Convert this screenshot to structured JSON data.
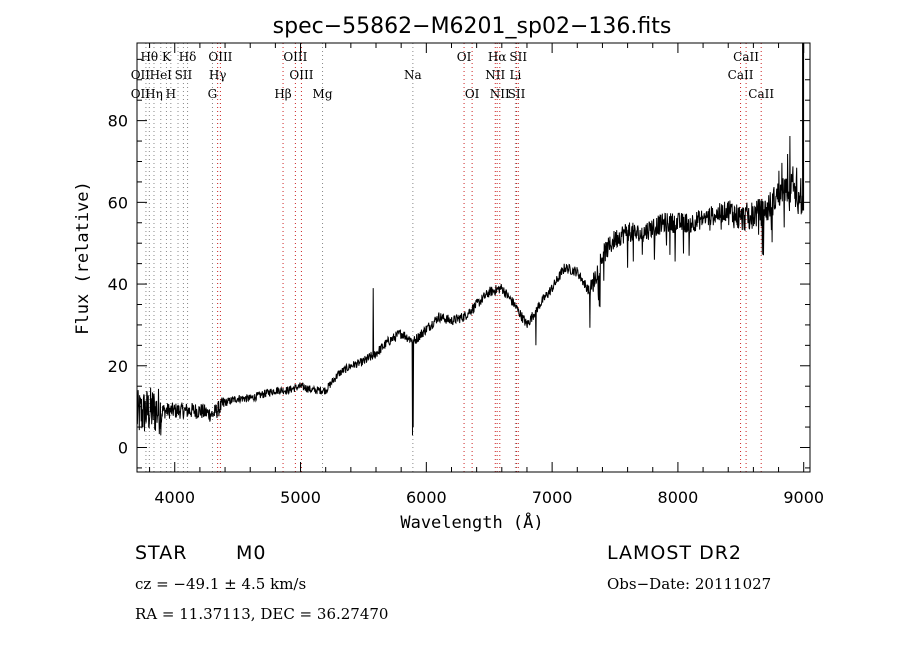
{
  "chart_data": {
    "type": "line",
    "title": "spec−55862−M6201_sp02−136.fits",
    "xlabel": "Wavelength (Å)",
    "ylabel": "Flux (relative)",
    "xlim": [
      3700,
      9050
    ],
    "ylim": [
      -6,
      99
    ],
    "xticks": [
      {
        "value": 4000,
        "label": "4000"
      },
      {
        "value": 5000,
        "label": "5000"
      },
      {
        "value": 6000,
        "label": "6000"
      },
      {
        "value": 7000,
        "label": "7000"
      },
      {
        "value": 8000,
        "label": "8000"
      },
      {
        "value": 9000,
        "label": "9000"
      }
    ],
    "yticks": [
      {
        "value": 0,
        "label": "0"
      },
      {
        "value": 20,
        "label": "20"
      },
      {
        "value": 40,
        "label": "40"
      },
      {
        "value": 60,
        "label": "60"
      },
      {
        "value": 80,
        "label": "80"
      }
    ],
    "continuum": [
      [
        3700,
        8
      ],
      [
        3800,
        9
      ],
      [
        3900,
        9
      ],
      [
        4000,
        9
      ],
      [
        4100,
        9
      ],
      [
        4200,
        9
      ],
      [
        4300,
        8
      ],
      [
        4400,
        11
      ],
      [
        4500,
        12
      ],
      [
        4600,
        12
      ],
      [
        4700,
        13
      ],
      [
        4800,
        14
      ],
      [
        4900,
        14
      ],
      [
        5000,
        15
      ],
      [
        5100,
        14
      ],
      [
        5200,
        14
      ],
      [
        5300,
        18
      ],
      [
        5400,
        20
      ],
      [
        5500,
        21
      ],
      [
        5600,
        23
      ],
      [
        5700,
        26
      ],
      [
        5800,
        28
      ],
      [
        5900,
        26
      ],
      [
        6000,
        29
      ],
      [
        6100,
        32
      ],
      [
        6200,
        31
      ],
      [
        6300,
        32
      ],
      [
        6400,
        35
      ],
      [
        6500,
        38
      ],
      [
        6600,
        39
      ],
      [
        6700,
        35
      ],
      [
        6800,
        30
      ],
      [
        6900,
        35
      ],
      [
        7000,
        39
      ],
      [
        7100,
        44
      ],
      [
        7200,
        43
      ],
      [
        7300,
        38
      ],
      [
        7400,
        47
      ],
      [
        7500,
        51
      ],
      [
        7600,
        53
      ],
      [
        7700,
        52
      ],
      [
        7800,
        54
      ],
      [
        7900,
        55
      ],
      [
        8000,
        55
      ],
      [
        8100,
        55
      ],
      [
        8200,
        56
      ],
      [
        8300,
        57
      ],
      [
        8400,
        58
      ],
      [
        8500,
        56
      ],
      [
        8600,
        57
      ],
      [
        8700,
        58
      ],
      [
        8800,
        62
      ],
      [
        8900,
        64
      ],
      [
        8950,
        60
      ],
      [
        9000,
        58
      ]
    ],
    "features": [
      [
        5577,
        39
      ],
      [
        5890,
        3
      ],
      [
        5895,
        5
      ],
      [
        6870,
        25
      ],
      [
        7600,
        44
      ]
    ],
    "line_marks": [
      {
        "wl": 3771,
        "label": "",
        "color": "#888888"
      },
      {
        "wl": 3798,
        "label": "",
        "color": "#888888"
      },
      {
        "wl": 3835,
        "label": "",
        "color": "#888888"
      },
      {
        "wl": 3889,
        "label": "",
        "color": "#888888"
      },
      {
        "wl": 3934,
        "label": "",
        "color": "#888888"
      },
      {
        "wl": 3969,
        "label": "",
        "color": "#888888"
      },
      {
        "wl": 4026,
        "label": "",
        "color": "#888888"
      },
      {
        "wl": 4069,
        "label": "",
        "color": "#888888"
      },
      {
        "wl": 4102,
        "label": "",
        "color": "#888888"
      },
      {
        "wl": 4300,
        "label": "",
        "color": "#888888"
      },
      {
        "wl": 4341,
        "label": "",
        "color": "#cc2222"
      },
      {
        "wl": 4363,
        "label": "",
        "color": "#cc2222"
      },
      {
        "wl": 4861,
        "label": "",
        "color": "#cc2222"
      },
      {
        "wl": 4959,
        "label": "",
        "color": "#cc2222"
      },
      {
        "wl": 5007,
        "label": "",
        "color": "#cc2222"
      },
      {
        "wl": 5175,
        "label": "",
        "color": "#888888"
      },
      {
        "wl": 5893,
        "label": "",
        "color": "#888888"
      },
      {
        "wl": 6300,
        "label": "",
        "color": "#cc2222"
      },
      {
        "wl": 6364,
        "label": "",
        "color": "#cc2222"
      },
      {
        "wl": 6548,
        "label": "",
        "color": "#cc2222"
      },
      {
        "wl": 6563,
        "label": "",
        "color": "#cc2222"
      },
      {
        "wl": 6584,
        "label": "",
        "color": "#cc2222"
      },
      {
        "wl": 6708,
        "label": "",
        "color": "#888888"
      },
      {
        "wl": 6717,
        "label": "",
        "color": "#cc2222"
      },
      {
        "wl": 6731,
        "label": "",
        "color": "#cc2222"
      },
      {
        "wl": 8498,
        "label": "",
        "color": "#cc2222"
      },
      {
        "wl": 8542,
        "label": "",
        "color": "#cc2222"
      },
      {
        "wl": 8662,
        "label": "",
        "color": "#cc2222"
      }
    ],
    "line_labels": [
      {
        "text": "Hθ",
        "wl": 3798,
        "row": 0
      },
      {
        "text": "K",
        "wl": 3934,
        "row": 0
      },
      {
        "text": "Hδ",
        "wl": 4102,
        "row": 0
      },
      {
        "text": "OIII",
        "wl": 4363,
        "row": 0
      },
      {
        "text": "OIII",
        "wl": 4959,
        "row": 0
      },
      {
        "text": "OI",
        "wl": 6300,
        "row": 0
      },
      {
        "text": "Hα",
        "wl": 6563,
        "row": 0
      },
      {
        "text": "SII",
        "wl": 6731,
        "row": 0
      },
      {
        "text": "CaII",
        "wl": 8542,
        "row": 0
      },
      {
        "text": "OII",
        "wl": 3727,
        "row": 1
      },
      {
        "text": "HeI",
        "wl": 3889,
        "row": 1
      },
      {
        "text": "SII",
        "wl": 4069,
        "row": 1
      },
      {
        "text": "Hγ",
        "wl": 4341,
        "row": 1
      },
      {
        "text": "OIII",
        "wl": 5007,
        "row": 1
      },
      {
        "text": "Na",
        "wl": 5893,
        "row": 1
      },
      {
        "text": "NII",
        "wl": 6548,
        "row": 1
      },
      {
        "text": "Li",
        "wl": 6708,
        "row": 1
      },
      {
        "text": "CaII",
        "wl": 8498,
        "row": 1
      },
      {
        "text": "OII",
        "wl": 3727,
        "row": 2
      },
      {
        "text": "Hη",
        "wl": 3835,
        "row": 2
      },
      {
        "text": "H",
        "wl": 3969,
        "row": 2
      },
      {
        "text": "G",
        "wl": 4300,
        "row": 2
      },
      {
        "text": "Hβ",
        "wl": 4861,
        "row": 2
      },
      {
        "text": "Mg",
        "wl": 5175,
        "row": 2
      },
      {
        "text": "OI",
        "wl": 6364,
        "row": 2
      },
      {
        "text": "NII",
        "wl": 6584,
        "row": 2
      },
      {
        "text": "SII",
        "wl": 6717,
        "row": 2
      },
      {
        "text": "CaII",
        "wl": 8662,
        "row": 2
      }
    ]
  },
  "info": {
    "object_class": "STAR",
    "subclass": "M0",
    "survey": "LAMOST DR2",
    "redshift_text": "cz = −49.1 ± 4.5 km/s",
    "obs_date": "Obs−Date: 20111027",
    "coords": "RA =  11.37113, DEC =  36.27470"
  }
}
